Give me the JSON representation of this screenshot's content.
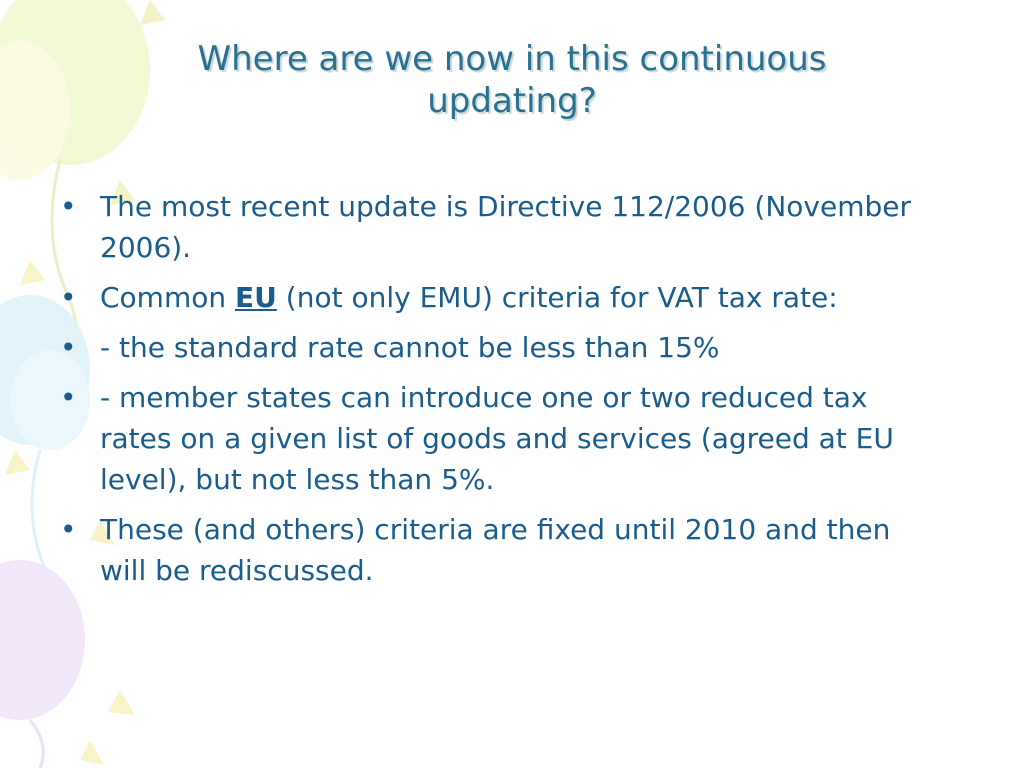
{
  "slide": {
    "title": [
      "Where are we now in this continuous",
      "updating?"
    ],
    "bullets": [
      "The most recent update is Directive 112/2006 (November 2006).",
      {
        "before": "Common",
        "emphasis": "EU",
        "after": "(not only EMU) criteria for VAT tax rate:"
      },
      "- the standard rate cannot be less than 15%",
      "- member states can introduce one or two reduced tax rates on a given list of goods and services (agreed at EU level), but not less than 5%.",
      "These (and others) criteria are fixed until 2010 and then will be rediscussed."
    ]
  }
}
